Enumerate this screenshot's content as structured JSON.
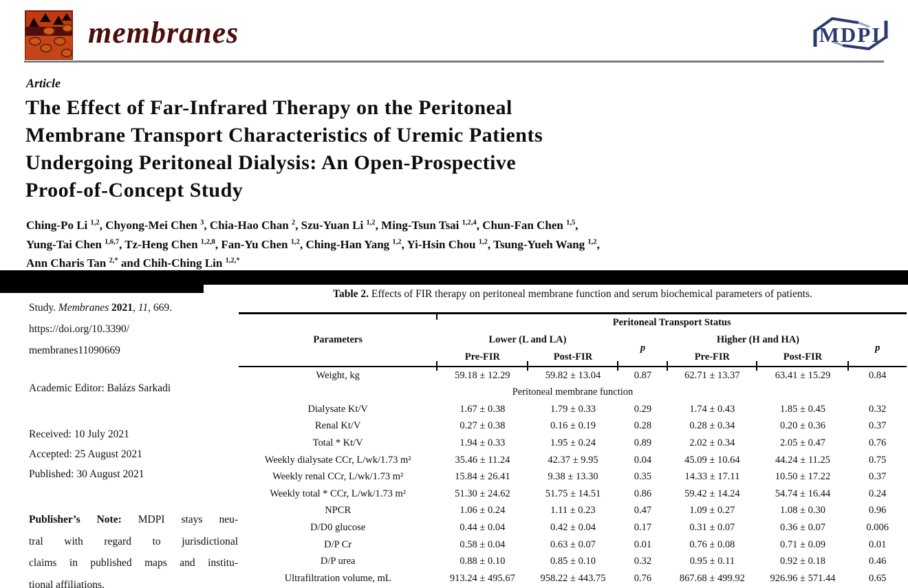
{
  "journal": {
    "name": "membranes",
    "publisher": "MDPI",
    "brand_colors": {
      "logo_background": "#bf3a12",
      "logo_band": "#4f100d",
      "logo_ellipse": "#d06018",
      "journal_name_color": "#4c0d0d",
      "mdpi_navy": "#2b3b6e",
      "mdpi_light": "#93a2c9",
      "header_rule_gray": "#7c7c7c"
    }
  },
  "article": {
    "type_label": "Article",
    "title_lines": [
      "The Effect of Far-Infrared Therapy on the Peritoneal",
      "Membrane Transport Characteristics of Uremic Patients",
      "Undergoing Peritoneal Dialysis: An Open-Prospective",
      "Proof-of-Concept Study"
    ]
  },
  "authors": {
    "lines": [
      [
        {
          "t": "Ching-Po Li ",
          "sup": "1,2"
        },
        {
          "t": ", Chyong-Mei Chen ",
          "sup": "3"
        },
        {
          "t": ", Chia-Hao Chan ",
          "sup": "2"
        },
        {
          "t": ", Szu-Yuan Li ",
          "sup": "1,2"
        },
        {
          "t": ", Ming-Tsun Tsai ",
          "sup": "1,2,4"
        },
        {
          "t": ", Chun-Fan Chen ",
          "sup": "1,5"
        },
        {
          "t": ","
        }
      ],
      [
        {
          "t": "Yung-Tai Chen ",
          "sup": "1,6,7"
        },
        {
          "t": ", Tz-Heng Chen ",
          "sup": "1,2,8"
        },
        {
          "t": ", Fan-Yu Chen ",
          "sup": "1,2"
        },
        {
          "t": ", Ching-Han Yang ",
          "sup": "1,2"
        },
        {
          "t": ", Yi-Hsin Chou ",
          "sup": "1,2"
        },
        {
          "t": ", Tsung-Yueh Wang ",
          "sup": "1,2"
        },
        {
          "t": ","
        }
      ],
      [
        {
          "t": "Ann Charis Tan ",
          "sup": "2,*"
        },
        {
          "t": " and Chih-Ching Lin ",
          "sup": "1,2,*"
        }
      ]
    ]
  },
  "sidebar": {
    "citation_segments": [
      {
        "t": "Study. "
      },
      {
        "t": "Membranes ",
        "i": 1
      },
      {
        "t": "2021",
        "b": 1
      },
      {
        "t": ", "
      },
      {
        "t": "11",
        "i": 1
      },
      {
        "t": ", 669."
      }
    ],
    "doi_lines": [
      "https://doi.org/10.3390/",
      "membranes11090669"
    ],
    "academic_editor": "Academic Editor: Balázs Sarkadi",
    "dates": {
      "received": "Received: 10 July 2021",
      "accepted": "Accepted: 25 August 2021",
      "published": "Published: 30 August 2021"
    },
    "publisher_note_lines": [
      {
        "segs": [
          {
            "t": "Publisher’s Note: ",
            "b": 1
          },
          {
            "t": "MDPI stays neu-"
          }
        ]
      },
      {
        "segs": [
          {
            "t": "tral with regard to jurisdictional"
          }
        ]
      },
      {
        "segs": [
          {
            "t": "claims in published maps and institu-"
          }
        ]
      },
      {
        "segs": [
          {
            "t": "tional affiliations."
          }
        ]
      }
    ]
  },
  "table": {
    "caption_segments": [
      {
        "t": "Table 2. ",
        "b": 1
      },
      {
        "t": "Effects of FIR therapy on peritoneal membrane function and serum biochemical parameters of patients."
      }
    ],
    "headers": {
      "parameters": "Parameters",
      "transport_status": "Peritoneal Transport Status",
      "lower": "Lower (L and LA)",
      "higher": "Higher (H and HA)",
      "pre_fir": "Pre-FIR",
      "post_fir": "Post-FIR",
      "p": "p"
    },
    "rows": [
      {
        "label": "Weight, kg",
        "cells": [
          "59.18 ± 12.29",
          "59.82 ± 13.04",
          "0.87",
          "62.71 ± 13.37",
          "63.41 ± 15.29",
          "0.84"
        ]
      },
      {
        "label": "Peritoneal membrane function",
        "section": true
      },
      {
        "label": "Dialysate Kt/V",
        "cells": [
          "1.67 ± 0.38",
          "1.79 ± 0.33",
          "0.29",
          "1.74 ± 0.43",
          "1.85 ± 0.45",
          "0.32"
        ]
      },
      {
        "label": "Renal Kt/V",
        "cells": [
          "0.27 ± 0.38",
          "0.16 ± 0.19",
          "0.28",
          "0.28 ± 0.34",
          "0.20 ± 0.36",
          "0.37"
        ]
      },
      {
        "label": "Total * Kt/V",
        "cells": [
          "1.94 ± 0.33",
          "1.95 ± 0.24",
          "0.89",
          "2.02 ± 0.34",
          "2.05 ± 0.47",
          "0.76"
        ]
      },
      {
        "label": "Weekly dialysate CCr, L/wk/1.73 m²",
        "cells": [
          "35.46 ± 11.24",
          "42.37 ± 9.95",
          "0.04",
          "45.09 ± 10.64",
          "44.24 ± 11.25",
          "0.75"
        ]
      },
      {
        "label": "Weekly renal CCr, L/wk/1.73 m²",
        "cells": [
          "15.84 ± 26.41",
          "9.38 ± 13.30",
          "0.35",
          "14.33 ± 17.11",
          "10.50 ± 17.22",
          "0.37"
        ]
      },
      {
        "label": "Weekly total * CCr, L/wk/1.73 m²",
        "cells": [
          "51.30 ± 24.62",
          "51.75 ± 14.51",
          "0.86",
          "59.42 ± 14.24",
          "54.74 ± 16.44",
          "0.24"
        ]
      },
      {
        "label": "NPCR",
        "cells": [
          "1.06 ± 0.24",
          "1.11 ± 0.23",
          "0.47",
          "1.09 ± 0.27",
          "1.08 ± 0.30",
          "0.96"
        ]
      },
      {
        "label": "D/D0 glucose",
        "cells": [
          "0.44 ± 0.04",
          "0.42 ± 0.04",
          "0.17",
          "0.31 ± 0.07",
          "0.36 ± 0.07",
          "0.006"
        ]
      },
      {
        "label": "D/P Cr",
        "cells": [
          "0.58 ± 0.04",
          "0.63 ± 0.07",
          "0.01",
          "0.76 ± 0.08",
          "0.71 ± 0.09",
          "0.01"
        ]
      },
      {
        "label": "D/P urea",
        "cells": [
          "0.88 ± 0.10",
          "0.85 ± 0.10",
          "0.32",
          "0.95 ± 0.11",
          "0.92 ± 0.18",
          "0.46"
        ]
      },
      {
        "label": "Ultrafiltration volume, mL",
        "cells": [
          "913.24 ± 495.67",
          "958.22 ± 443.75",
          "0.76",
          "867.68 ± 499.92",
          "926.96 ± 571.44",
          "0.65"
        ]
      }
    ]
  }
}
